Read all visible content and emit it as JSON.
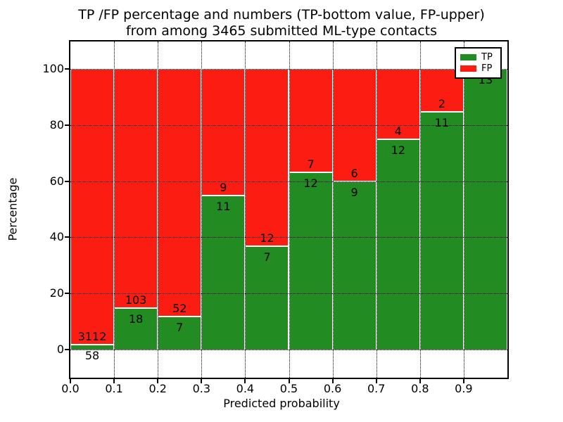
{
  "title": {
    "line1": "TP /FP percentage and numbers (TP-bottom value, FP-upper)",
    "line2": "from among 3465 submitted ML-type contacts"
  },
  "axes": {
    "ylabel": "Percentage",
    "xlabel": "Predicted probability",
    "yticks": [
      "0",
      "20",
      "40",
      "60",
      "80",
      "100"
    ],
    "ytick_values": [
      0,
      20,
      40,
      60,
      80,
      100
    ],
    "xticks": [
      "0.0",
      "0.1",
      "0.2",
      "0.3",
      "0.4",
      "0.5",
      "0.6",
      "0.7",
      "0.8",
      "0.9"
    ],
    "grid": "dotted"
  },
  "legend": {
    "position": "upper right",
    "entries": [
      {
        "label": "TP",
        "color": "#228b22"
      },
      {
        "label": "FP",
        "color": "#fb1d12"
      }
    ]
  },
  "chart_data": {
    "type": "bar",
    "stacked": true,
    "normalized_to_percent": true,
    "title": "TP /FP percentage and numbers (TP-bottom value, FP-upper) from among 3465 submitted ML-type contacts",
    "xlabel": "Predicted probability",
    "ylabel": "Percentage",
    "xlim": [
      0.0,
      1.0
    ],
    "ylim": [
      -10,
      110
    ],
    "total_contacts": 3465,
    "bin_edges": [
      0.0,
      0.1,
      0.2,
      0.3,
      0.4,
      0.5,
      0.6,
      0.7,
      0.8,
      0.9,
      1.0
    ],
    "categories": [
      "0.0-0.1",
      "0.1-0.2",
      "0.2-0.3",
      "0.3-0.4",
      "0.4-0.5",
      "0.5-0.6",
      "0.6-0.7",
      "0.7-0.8",
      "0.8-0.9",
      "0.9-1.0"
    ],
    "series": [
      {
        "name": "TP",
        "color": "#228b22",
        "counts": [
          58,
          18,
          7,
          11,
          7,
          12,
          9,
          12,
          11,
          13
        ]
      },
      {
        "name": "FP",
        "color": "#fb1d12",
        "counts": [
          3112,
          103,
          52,
          9,
          12,
          7,
          6,
          4,
          2,
          0
        ]
      }
    ],
    "tp_percent": [
      1.83,
      14.88,
      11.86,
      55.0,
      36.84,
      63.16,
      60.0,
      75.0,
      84.62,
      100.0
    ]
  }
}
